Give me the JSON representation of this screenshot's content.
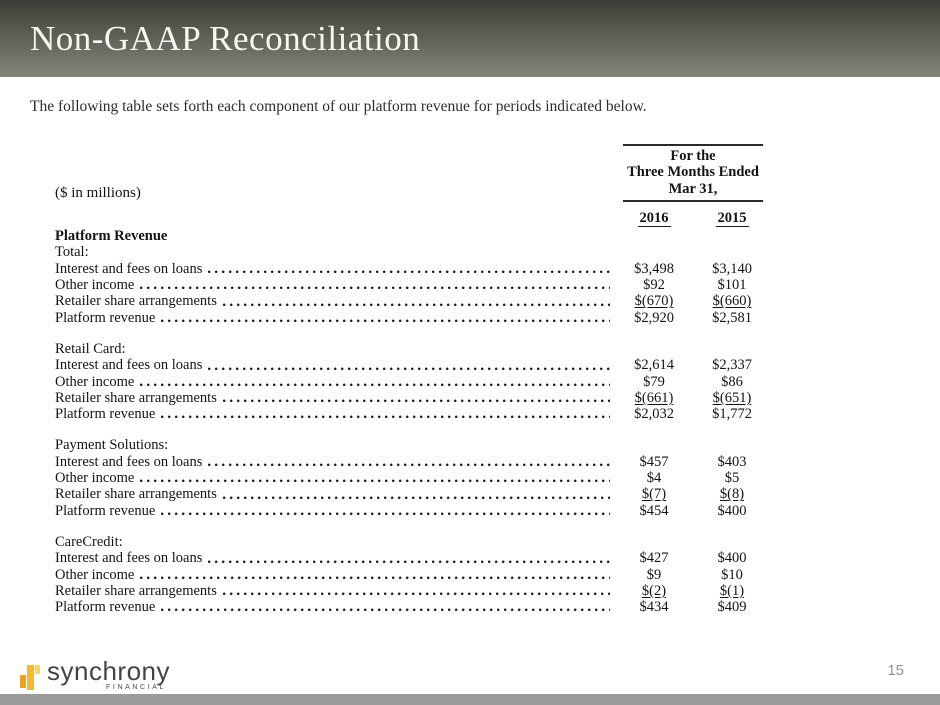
{
  "slide": {
    "title": "Non-GAAP Reconciliation",
    "intro": "The following table sets forth each component of our platform revenue for periods indicated below.",
    "page_number": "15"
  },
  "table": {
    "units_label": "($ in millions)",
    "period_header_lines": [
      "For the",
      "Three Months Ended",
      "Mar 31,"
    ],
    "columns": [
      "2016",
      "2015"
    ],
    "sections": [
      {
        "group_heading": "Platform Revenue",
        "name": "Total:",
        "rows": [
          {
            "label": "Interest and fees on loans",
            "v2016": "$3,498",
            "v2015": "$3,140",
            "underline": false
          },
          {
            "label": "Other income",
            "v2016": "$92",
            "v2015": "$101",
            "underline": false
          },
          {
            "label": "Retailer share arrangements",
            "v2016": "$(670)",
            "v2015": "$(660)",
            "underline": true
          },
          {
            "label": "Platform revenue",
            "v2016": "$2,920",
            "v2015": "$2,581",
            "underline": false
          }
        ]
      },
      {
        "name": "Retail Card:",
        "rows": [
          {
            "label": "Interest and fees on loans",
            "v2016": "$2,614",
            "v2015": "$2,337",
            "underline": false
          },
          {
            "label": "Other income",
            "v2016": "$79",
            "v2015": "$86",
            "underline": false
          },
          {
            "label": "Retailer share arrangements",
            "v2016": "$(661)",
            "v2015": "$(651)",
            "underline": true
          },
          {
            "label": "Platform revenue",
            "v2016": "$2,032",
            "v2015": "$1,772",
            "underline": false
          }
        ]
      },
      {
        "name": "Payment Solutions:",
        "rows": [
          {
            "label": "Interest and fees on loans",
            "v2016": "$457",
            "v2015": "$403",
            "underline": false
          },
          {
            "label": "Other income",
            "v2016": "$4",
            "v2015": "$5",
            "underline": false
          },
          {
            "label": "Retailer share arrangements",
            "v2016": "$(7)",
            "v2015": "$(8)",
            "underline": true
          },
          {
            "label": "Platform revenue",
            "v2016": "$454",
            "v2015": "$400",
            "underline": false
          }
        ]
      },
      {
        "name": "CareCredit:",
        "rows": [
          {
            "label": "Interest and fees on loans",
            "v2016": "$427",
            "v2015": "$400",
            "underline": false
          },
          {
            "label": "Other income",
            "v2016": "$9",
            "v2015": "$10",
            "underline": false
          },
          {
            "label": "Retailer share arrangements",
            "v2016": "$(2)",
            "v2015": "$(1)",
            "underline": true
          },
          {
            "label": "Platform revenue",
            "v2016": "$434",
            "v2015": "$409",
            "underline": false
          }
        ]
      }
    ]
  },
  "footer": {
    "logo_text": "synchrony",
    "logo_subtext": "FINANCIAL"
  },
  "colors": {
    "header_gradient_top": "#3c3d36",
    "header_gradient_bottom": "#84857a",
    "accent_gold": "#f6b92d",
    "accent_gold_dark": "#e7a321",
    "accent_gold_light": "#ffd45e",
    "footer_bar_gray": "#9b9b9b"
  }
}
